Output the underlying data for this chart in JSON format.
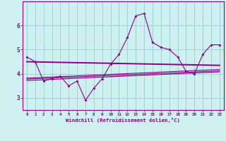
{
  "xlabel": "Windchill (Refroidissement éolien,°C)",
  "bg_color": "#cef0f0",
  "line_color": "#880088",
  "grid_color": "#99cccc",
  "x_values": [
    0,
    1,
    2,
    3,
    4,
    5,
    6,
    7,
    8,
    9,
    10,
    11,
    12,
    13,
    14,
    15,
    16,
    17,
    18,
    19,
    20,
    21,
    22,
    23
  ],
  "series1": [
    4.7,
    4.5,
    3.7,
    3.8,
    3.9,
    3.5,
    3.7,
    2.9,
    3.4,
    3.8,
    4.4,
    4.8,
    5.5,
    6.4,
    6.5,
    5.3,
    5.1,
    5.0,
    4.7,
    4.1,
    4.0,
    4.8,
    5.2,
    5.2
  ],
  "line2": [
    4.5,
    4.35
  ],
  "line3": [
    3.78,
    4.12
  ],
  "line4": [
    3.72,
    4.08
  ],
  "line5": [
    3.82,
    4.18
  ],
  "ylim": [
    2.5,
    7.0
  ],
  "xlim": [
    -0.5,
    23.5
  ],
  "yticks": [
    3,
    4,
    5,
    6
  ],
  "xticks": [
    0,
    1,
    2,
    3,
    4,
    5,
    6,
    7,
    8,
    9,
    10,
    11,
    12,
    13,
    14,
    15,
    16,
    17,
    18,
    19,
    20,
    21,
    22,
    23
  ]
}
